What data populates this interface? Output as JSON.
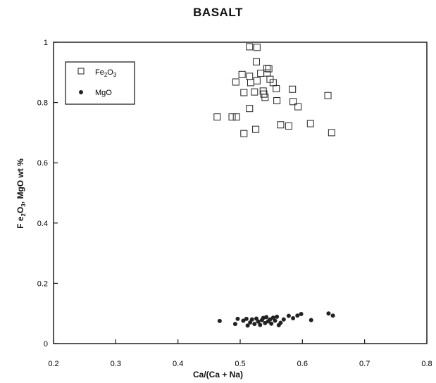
{
  "chart_data": {
    "type": "scatter",
    "title": "BASALT",
    "xlabel": "Ca/(Ca + Na)",
    "ylabel": {
      "pre": "F e",
      "sub1": "2",
      "mid": "O",
      "sub2": "3",
      "post": ",  MgO  wt %"
    },
    "xlim": [
      0.2,
      0.8
    ],
    "ylim": [
      0,
      1
    ],
    "xticks": [
      "0.2",
      "0.3",
      "0.4",
      "0.5",
      "0.6",
      "0.7",
      "0.8"
    ],
    "yticks": [
      "0",
      "0.2",
      "0.4",
      "0.6",
      "0.8",
      "1"
    ],
    "grid": false,
    "legend_position": "top-left",
    "series": [
      {
        "name": "Fe2O3",
        "label": {
          "base": "Fe",
          "sub1": "2",
          "mid": "O",
          "sub2": "3"
        },
        "marker": "open-square",
        "color": "#222222",
        "points": [
          [
            0.515,
            0.985
          ],
          [
            0.527,
            0.983
          ],
          [
            0.526,
            0.935
          ],
          [
            0.543,
            0.913
          ],
          [
            0.546,
            0.912
          ],
          [
            0.503,
            0.893
          ],
          [
            0.515,
            0.887
          ],
          [
            0.533,
            0.897
          ],
          [
            0.543,
            0.898
          ],
          [
            0.548,
            0.877
          ],
          [
            0.553,
            0.866
          ],
          [
            0.493,
            0.868
          ],
          [
            0.517,
            0.866
          ],
          [
            0.527,
            0.872
          ],
          [
            0.506,
            0.833
          ],
          [
            0.523,
            0.835
          ],
          [
            0.537,
            0.838
          ],
          [
            0.538,
            0.828
          ],
          [
            0.54,
            0.817
          ],
          [
            0.558,
            0.846
          ],
          [
            0.584,
            0.844
          ],
          [
            0.641,
            0.823
          ],
          [
            0.559,
            0.806
          ],
          [
            0.585,
            0.803
          ],
          [
            0.593,
            0.786
          ],
          [
            0.515,
            0.78
          ],
          [
            0.463,
            0.752
          ],
          [
            0.487,
            0.752
          ],
          [
            0.494,
            0.752
          ],
          [
            0.565,
            0.726
          ],
          [
            0.578,
            0.722
          ],
          [
            0.613,
            0.73
          ],
          [
            0.525,
            0.711
          ],
          [
            0.506,
            0.697
          ],
          [
            0.647,
            0.7
          ]
        ]
      },
      {
        "name": "MgO",
        "label": {
          "base": "MgO"
        },
        "marker": "filled-circle",
        "color": "#222222",
        "points": [
          [
            0.467,
            0.075
          ],
          [
            0.492,
            0.065
          ],
          [
            0.496,
            0.082
          ],
          [
            0.505,
            0.076
          ],
          [
            0.51,
            0.082
          ],
          [
            0.512,
            0.06
          ],
          [
            0.516,
            0.07
          ],
          [
            0.519,
            0.08
          ],
          [
            0.523,
            0.065
          ],
          [
            0.526,
            0.083
          ],
          [
            0.529,
            0.073
          ],
          [
            0.532,
            0.062
          ],
          [
            0.535,
            0.078
          ],
          [
            0.537,
            0.085
          ],
          [
            0.54,
            0.068
          ],
          [
            0.542,
            0.088
          ],
          [
            0.545,
            0.074
          ],
          [
            0.548,
            0.08
          ],
          [
            0.55,
            0.066
          ],
          [
            0.553,
            0.086
          ],
          [
            0.556,
            0.076
          ],
          [
            0.559,
            0.089
          ],
          [
            0.562,
            0.061
          ],
          [
            0.565,
            0.069
          ],
          [
            0.57,
            0.08
          ],
          [
            0.578,
            0.092
          ],
          [
            0.585,
            0.084
          ],
          [
            0.592,
            0.093
          ],
          [
            0.598,
            0.098
          ],
          [
            0.614,
            0.078
          ],
          [
            0.642,
            0.1
          ],
          [
            0.649,
            0.093
          ]
        ]
      }
    ]
  }
}
